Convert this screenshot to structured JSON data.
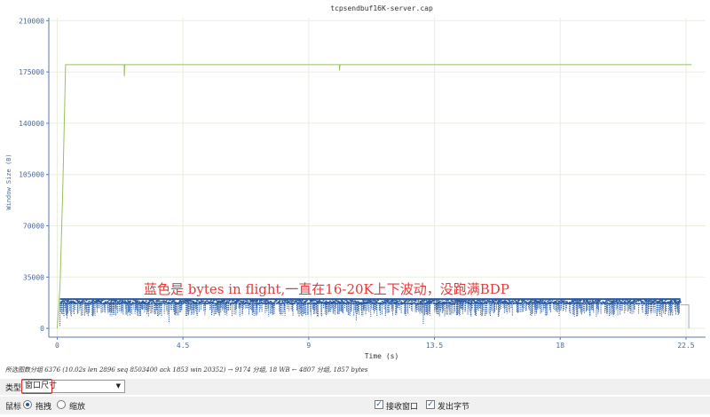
{
  "status_text": "所选图数分组 6376 (10.02s len 2896 seq 8503400 ack 1853 win 20352) → 9174 分组, 18 WB ← 4807 分组, 1857 bytes",
  "controls": {
    "type_label": "类型",
    "type_value": "窗口尺寸",
    "mouse_label": "鼠标",
    "drag_label": "拖拽",
    "zoom_label": "缩放",
    "recv_window_label": "接收窗口",
    "bytes_out_label": "发出字节",
    "drag_selected": true,
    "recv_window_checked": true,
    "bytes_out_checked": true
  },
  "chart_data": {
    "type": "scatter",
    "title": "tcpsendbuf16K-server.cap",
    "xlabel": "Time (s)",
    "ylabel": "Window Size (B)",
    "annotation": "蓝色是 bytes in flight,一直在16-20K上下波动，没跑满BDP",
    "xlim": [
      -0.3,
      23.2
    ],
    "ylim": [
      -6000,
      212000
    ],
    "x_ticks": [
      "0",
      "4.5",
      "9",
      "13.5",
      "18",
      "22.5"
    ],
    "x_tick_values": [
      0,
      4.5,
      9,
      13.5,
      18,
      22.5
    ],
    "y_ticks": [
      "0",
      "35000",
      "70000",
      "105000",
      "140000",
      "175000",
      "210000"
    ],
    "y_tick_values": [
      0,
      35000,
      70000,
      105000,
      140000,
      175000,
      210000
    ],
    "grid": true,
    "series": [
      {
        "name": "",
        "kind": "line",
        "color": "#9bbf60",
        "points": [
          [
            0,
            0
          ],
          [
            0.1,
            28000
          ],
          [
            0.2,
            95000
          ],
          [
            0.3,
            180000
          ],
          [
            2.4,
            180000
          ],
          [
            2.4,
            172000
          ],
          [
            2.42,
            180000
          ],
          [
            10.1,
            180000
          ],
          [
            10.1,
            176000
          ],
          [
            10.12,
            180000
          ],
          [
            22.7,
            180000
          ]
        ]
      },
      {
        "name": "",
        "kind": "dense-scatter",
        "color": "#2a5aa0",
        "x_range": [
          0.1,
          22.3
        ],
        "band": [
          17000,
          20000
        ],
        "dips_to": [
          8000,
          14000
        ],
        "deep_dips": [
          [
            0.1,
            1500
          ],
          [
            0.35,
            6500
          ],
          [
            4.0,
            4000
          ],
          [
            10.7,
            5000
          ],
          [
            13.1,
            3000
          ]
        ],
        "tail": [
          [
            22.3,
            16000
          ],
          [
            22.6,
            16000
          ],
          [
            22.6,
            0
          ]
        ]
      }
    ]
  }
}
